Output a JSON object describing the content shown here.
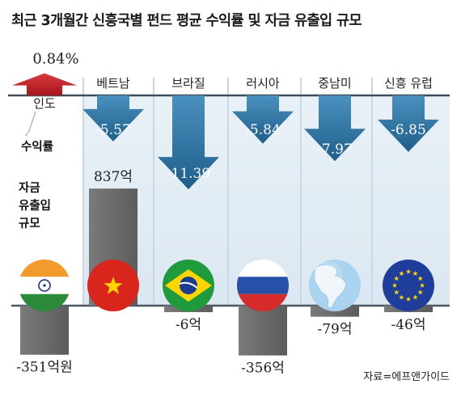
{
  "colors": {
    "background": "#ffffff",
    "panel": "#e3edf5",
    "divider": "#c9d8e4",
    "arrow_down": "#2b6f9a",
    "arrow_down_light": "#3f86b4",
    "arrow_up": "#c8232b",
    "flow_bar": "#6d6d6d",
    "baseline": "#4a5663",
    "text": "#222222"
  },
  "title": "최근 3개월간 신흥국별 펀드 평균 수익률 및 자금 유출입 규모",
  "legend": {
    "return_label": "수익률",
    "flow_label_lines": [
      "자금",
      "유출입",
      "규모"
    ]
  },
  "source": "자료=에프앤가이드",
  "chart_data": {
    "type": "bar",
    "categories": [
      "인도",
      "베트남",
      "브라질",
      "러시아",
      "중남미",
      "신흥 유럽"
    ],
    "series": [
      {
        "name": "수익률",
        "unit": "%",
        "values": [
          0.84,
          -5.57,
          -11.39,
          -5.84,
          -7.97,
          -6.85
        ],
        "labels": [
          "0.84%",
          "-5.57",
          "-11.39",
          "-5.84",
          "-7.97",
          "-6.85"
        ]
      },
      {
        "name": "자금 유출입 규모",
        "unit": "억원",
        "values": [
          -351,
          837,
          -6,
          -356,
          -79,
          -46
        ],
        "labels": [
          "-351억원",
          "837억",
          "-6억",
          "-356억",
          "-79억",
          "-46억"
        ]
      }
    ],
    "flags": [
      "india-flag",
      "vietnam-flag",
      "brazil-flag",
      "russia-flag",
      "latin-america-globe",
      "eu-flag"
    ]
  }
}
